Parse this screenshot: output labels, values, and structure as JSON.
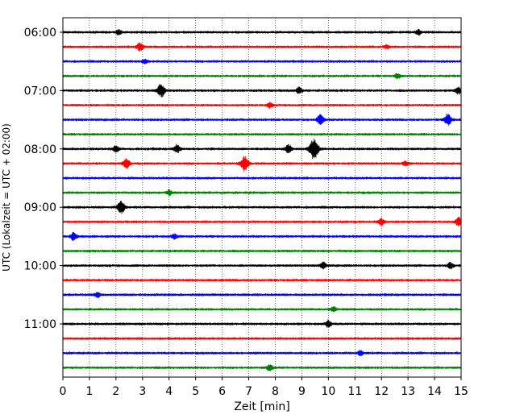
{
  "chart_data": {
    "type": "line",
    "subtype": "seismogram-helicorder",
    "title": "",
    "xlabel": "Zeit  [min]",
    "ylabel": "UTC (Lokalzeit = UTC + 02:00)",
    "xlim": [
      0,
      15
    ],
    "x_ticks": [
      "0",
      "1",
      "2",
      "3",
      "4",
      "5",
      "6",
      "7",
      "8",
      "9",
      "10",
      "11",
      "12",
      "13",
      "14",
      "15"
    ],
    "y_tick_labels": [
      "06:00",
      "07:00",
      "08:00",
      "09:00",
      "10:00",
      "11:00"
    ],
    "grid": "vertical dotted at each minute",
    "row_interval_min": 15,
    "row_start_times": [
      "06:00",
      "06:15",
      "06:30",
      "06:45",
      "07:00",
      "07:15",
      "07:30",
      "07:45",
      "08:00",
      "08:15",
      "08:30",
      "08:45",
      "09:00",
      "09:15",
      "09:30",
      "09:45",
      "10:00",
      "10:15",
      "10:30",
      "10:45",
      "11:00",
      "11:15",
      "11:30",
      "11:45"
    ],
    "color_cycle": [
      "#000000",
      "#ff0000",
      "#0000ff",
      "#008000"
    ],
    "events": [
      {
        "row": 0,
        "minute": 2.1,
        "amp": 3
      },
      {
        "row": 0,
        "minute": 13.4,
        "amp": 3
      },
      {
        "row": 1,
        "minute": 2.9,
        "amp": 5
      },
      {
        "row": 1,
        "minute": 12.2,
        "amp": 2
      },
      {
        "row": 2,
        "minute": 3.1,
        "amp": 3
      },
      {
        "row": 3,
        "minute": 12.6,
        "amp": 3
      },
      {
        "row": 4,
        "minute": 3.7,
        "amp": 8
      },
      {
        "row": 4,
        "minute": 8.9,
        "amp": 4
      },
      {
        "row": 4,
        "minute": 14.9,
        "amp": 4
      },
      {
        "row": 5,
        "minute": 7.8,
        "amp": 3
      },
      {
        "row": 6,
        "minute": 9.7,
        "amp": 6
      },
      {
        "row": 6,
        "minute": 14.5,
        "amp": 7
      },
      {
        "row": 8,
        "minute": 2.0,
        "amp": 4
      },
      {
        "row": 8,
        "minute": 4.3,
        "amp": 5
      },
      {
        "row": 8,
        "minute": 8.5,
        "amp": 5
      },
      {
        "row": 8,
        "minute": 9.45,
        "amp": 13
      },
      {
        "row": 9,
        "minute": 2.4,
        "amp": 6
      },
      {
        "row": 9,
        "minute": 6.85,
        "amp": 9
      },
      {
        "row": 9,
        "minute": 12.9,
        "amp": 3
      },
      {
        "row": 11,
        "minute": 4.0,
        "amp": 3
      },
      {
        "row": 12,
        "minute": 2.2,
        "amp": 8
      },
      {
        "row": 13,
        "minute": 12.0,
        "amp": 4
      },
      {
        "row": 13,
        "minute": 14.9,
        "amp": 5
      },
      {
        "row": 14,
        "minute": 0.4,
        "amp": 5
      },
      {
        "row": 14,
        "minute": 4.2,
        "amp": 3
      },
      {
        "row": 16,
        "minute": 9.8,
        "amp": 4
      },
      {
        "row": 16,
        "minute": 14.6,
        "amp": 4
      },
      {
        "row": 18,
        "minute": 1.3,
        "amp": 3
      },
      {
        "row": 19,
        "minute": 10.2,
        "amp": 3
      },
      {
        "row": 20,
        "minute": 10.0,
        "amp": 4
      },
      {
        "row": 22,
        "minute": 11.2,
        "amp": 3
      },
      {
        "row": 23,
        "minute": 7.8,
        "amp": 4
      }
    ]
  }
}
